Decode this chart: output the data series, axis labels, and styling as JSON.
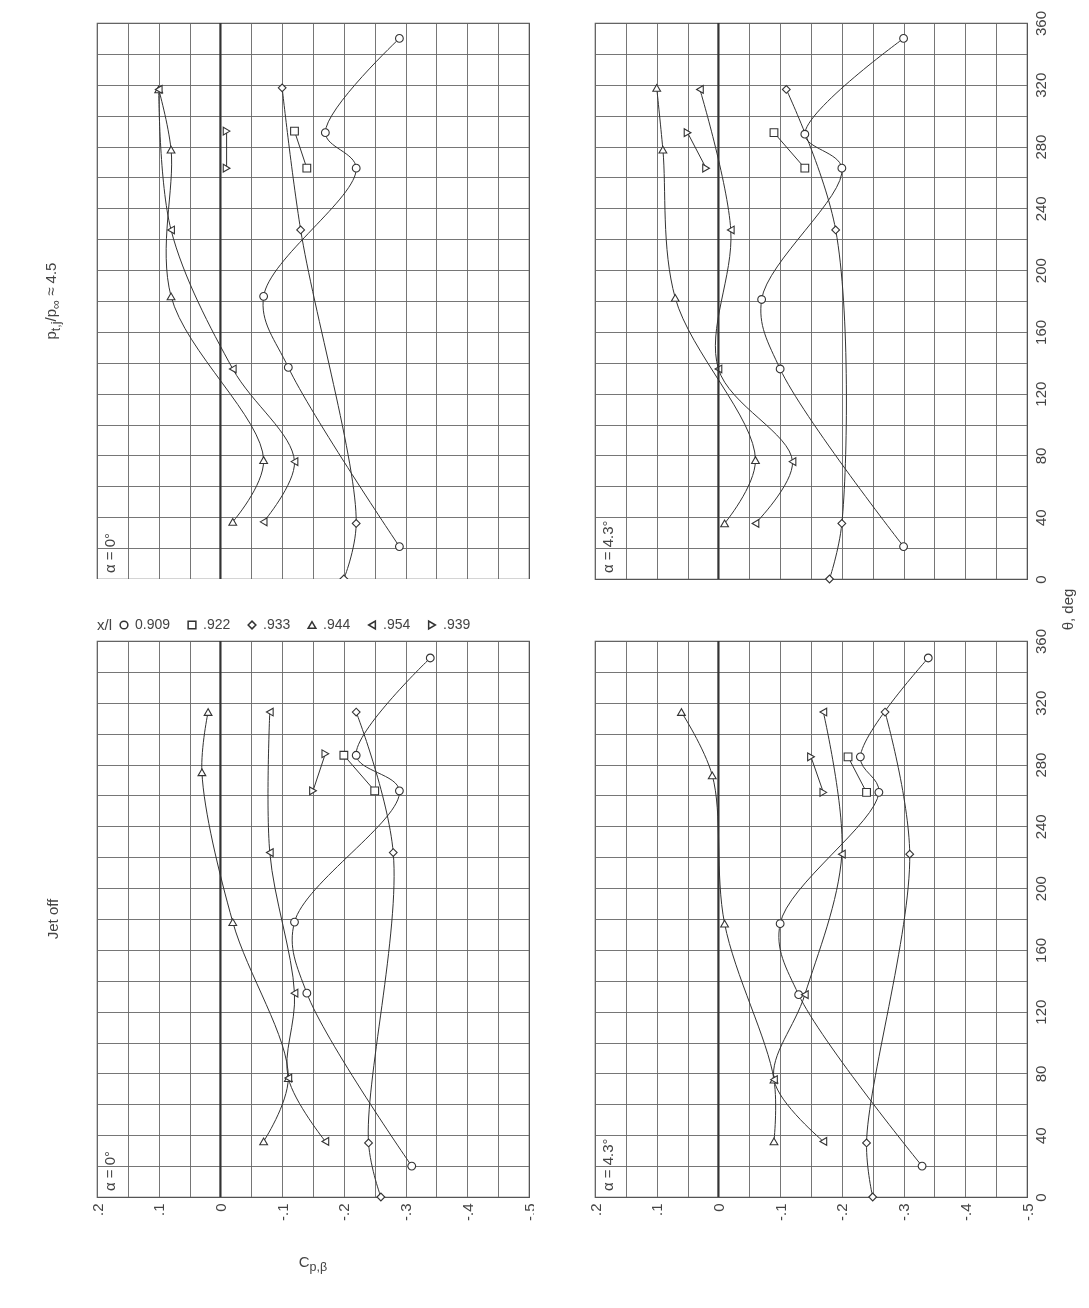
{
  "chart_data": [
    {
      "type": "line",
      "title": "p$_{t,j}$/p$_{∞}$ ≈ 4.5",
      "annotations": [
        "α = 0°"
      ],
      "xlim": [
        0.2,
        -0.5
      ],
      "ylim": [
        0,
        360
      ],
      "xticks": [
        {
          "value": 0.2,
          "label": null
        },
        {
          "value": 0.15,
          "label": null
        },
        {
          "value": 0.1,
          "label": null
        },
        {
          "value": 0.05,
          "label": null
        },
        {
          "value": 0,
          "label": null
        },
        {
          "value": -0.05,
          "label": null
        },
        {
          "value": -0.1,
          "label": null
        },
        {
          "value": -0.15,
          "label": null
        },
        {
          "value": -0.2,
          "label": null
        },
        {
          "value": -0.25,
          "label": null
        },
        {
          "value": -0.3,
          "label": null
        },
        {
          "value": -0.35,
          "label": null
        },
        {
          "value": -0.4,
          "label": null
        },
        {
          "value": -0.45,
          "label": null
        },
        {
          "value": -0.5,
          "label": null
        }
      ],
      "yticks": [
        {
          "value": 0,
          "label": null
        },
        {
          "value": 20,
          "label": null
        },
        {
          "value": 40,
          "label": null
        },
        {
          "value": 60,
          "label": null
        },
        {
          "value": 80,
          "label": null
        },
        {
          "value": 100,
          "label": null
        },
        {
          "value": 120,
          "label": null
        },
        {
          "value": 140,
          "label": null
        },
        {
          "value": 160,
          "label": null
        },
        {
          "value": 180,
          "label": null
        },
        {
          "value": 200,
          "label": null
        },
        {
          "value": 220,
          "label": null
        },
        {
          "value": 240,
          "label": null
        },
        {
          "value": 260,
          "label": null
        },
        {
          "value": 280,
          "label": null
        },
        {
          "value": 300,
          "label": null
        },
        {
          "value": 320,
          "label": null
        },
        {
          "value": 340,
          "label": null
        },
        {
          "value": 360,
          "label": null
        }
      ],
      "tick_labels": false,
      "grid": true,
      "line_style": "solid",
      "ref_lines": [
        {
          "axis": "x",
          "value": 0
        }
      ],
      "series": [
        {
          "color": "#333333",
          "marker": "circle",
          "x": [
            -0.29,
            -0.11,
            -0.07,
            -0.22,
            -0.17,
            -0.29
          ],
          "values": [
            21,
            137,
            183,
            266,
            289,
            350
          ]
        },
        {
          "color": "#333333",
          "marker": "square",
          "x": [
            -0.14,
            -0.12
          ],
          "values": [
            266,
            290
          ]
        },
        {
          "color": "#333333",
          "marker": "diamond",
          "x": [
            -0.2,
            -0.22,
            -0.13,
            -0.1
          ],
          "values": [
            0,
            36,
            226,
            318
          ]
        },
        {
          "color": "#333333",
          "marker": "triangle",
          "x": [
            -0.02,
            -0.07,
            0.08,
            0.08,
            0.1
          ],
          "values": [
            37,
            77,
            183,
            278,
            317
          ]
        },
        {
          "color": "#333333",
          "marker": "triangle-left",
          "x": [
            -0.07,
            -0.12,
            -0.02,
            0.08,
            0.1
          ],
          "values": [
            37,
            76,
            136,
            226,
            317
          ]
        },
        {
          "color": "#333333",
          "marker": "triangle-right",
          "x": [
            -0.01,
            -0.01
          ],
          "values": [
            266,
            290
          ]
        }
      ]
    },
    {
      "type": "line",
      "annotations": [
        "α = 4.3°"
      ],
      "xlim": [
        0.2,
        -0.5
      ],
      "ylim": [
        0,
        360
      ],
      "xticks": [
        {
          "value": 0.2,
          "label": null
        },
        {
          "value": 0.15,
          "label": null
        },
        {
          "value": 0.1,
          "label": null
        },
        {
          "value": 0.05,
          "label": null
        },
        {
          "value": 0,
          "label": null
        },
        {
          "value": -0.05,
          "label": null
        },
        {
          "value": -0.1,
          "label": null
        },
        {
          "value": -0.15,
          "label": null
        },
        {
          "value": -0.2,
          "label": null
        },
        {
          "value": -0.25,
          "label": null
        },
        {
          "value": -0.3,
          "label": null
        },
        {
          "value": -0.35,
          "label": null
        },
        {
          "value": -0.4,
          "label": null
        },
        {
          "value": -0.45,
          "label": null
        },
        {
          "value": -0.5,
          "label": null
        }
      ],
      "yticks": [
        0,
        {
          "value": 20,
          "label": null
        },
        40,
        {
          "value": 60,
          "label": null
        },
        80,
        {
          "value": 100,
          "label": null
        },
        120,
        {
          "value": 140,
          "label": null
        },
        160,
        {
          "value": 180,
          "label": null
        },
        200,
        {
          "value": 220,
          "label": null
        },
        240,
        {
          "value": 260,
          "label": null
        },
        280,
        {
          "value": 300,
          "label": null
        },
        320,
        {
          "value": 340,
          "label": null
        },
        360
      ],
      "tick_labels": "y",
      "grid": true,
      "line_style": "solid",
      "ref_lines": [
        {
          "axis": "x",
          "value": 0
        }
      ],
      "series": [
        {
          "color": "#333333",
          "marker": "circle",
          "x": [
            -0.3,
            -0.1,
            -0.07,
            -0.2,
            -0.14,
            -0.3
          ],
          "values": [
            21,
            136,
            181,
            266,
            288,
            350
          ]
        },
        {
          "color": "#333333",
          "marker": "square",
          "x": [
            -0.14,
            -0.09
          ],
          "values": [
            266,
            289
          ]
        },
        {
          "color": "#333333",
          "marker": "diamond",
          "x": [
            -0.18,
            -0.2,
            -0.19,
            -0.11
          ],
          "values": [
            0,
            36,
            226,
            317
          ]
        },
        {
          "color": "#333333",
          "marker": "triangle",
          "x": [
            -0.01,
            -0.06,
            0.07,
            0.09,
            0.1
          ],
          "values": [
            36,
            77,
            182,
            278,
            318
          ]
        },
        {
          "color": "#333333",
          "marker": "triangle-left",
          "x": [
            -0.06,
            -0.12,
            0,
            -0.02,
            0.03
          ],
          "values": [
            36,
            76,
            136,
            226,
            317
          ]
        },
        {
          "color": "#333333",
          "marker": "triangle-right",
          "x": [
            0.02,
            0.05
          ],
          "values": [
            266,
            289
          ]
        }
      ]
    },
    {
      "type": "line",
      "title": "Jet off",
      "annotations": [
        "α = 0°"
      ],
      "xlabel": "C$_{p,β}$",
      "legend_title": "x/l",
      "legend": "top left",
      "xlim": [
        0.2,
        -0.5
      ],
      "ylim": [
        0,
        360
      ],
      "xticks": [
        {
          "value": 0.2,
          "label": ".2"
        },
        {
          "value": 0.15,
          "label": null
        },
        {
          "value": 0.1,
          "label": ".1"
        },
        {
          "value": 0.05,
          "label": null
        },
        0,
        {
          "value": -0.05,
          "label": null
        },
        {
          "value": -0.1,
          "label": "-.1"
        },
        {
          "value": -0.15,
          "label": null
        },
        {
          "value": -0.2,
          "label": "-.2"
        },
        {
          "value": -0.25,
          "label": null
        },
        {
          "value": -0.3,
          "label": "-.3"
        },
        {
          "value": -0.35,
          "label": null
        },
        {
          "value": -0.4,
          "label": "-.4"
        },
        {
          "value": -0.45,
          "label": null
        },
        {
          "value": -0.5,
          "label": "-.5"
        }
      ],
      "yticks": [
        {
          "value": 0,
          "label": null
        },
        {
          "value": 20,
          "label": null
        },
        {
          "value": 40,
          "label": null
        },
        {
          "value": 60,
          "label": null
        },
        {
          "value": 80,
          "label": null
        },
        {
          "value": 100,
          "label": null
        },
        {
          "value": 120,
          "label": null
        },
        {
          "value": 140,
          "label": null
        },
        {
          "value": 160,
          "label": null
        },
        {
          "value": 180,
          "label": null
        },
        {
          "value": 200,
          "label": null
        },
        {
          "value": 220,
          "label": null
        },
        {
          "value": 240,
          "label": null
        },
        {
          "value": 260,
          "label": null
        },
        {
          "value": 280,
          "label": null
        },
        {
          "value": 300,
          "label": null
        },
        {
          "value": 320,
          "label": null
        },
        {
          "value": 340,
          "label": null
        },
        {
          "value": 360,
          "label": null
        }
      ],
      "tick_labels": "x",
      "grid": true,
      "line_style": "solid",
      "ref_lines": [
        {
          "axis": "x",
          "value": 0
        }
      ],
      "series": [
        {
          "name": "0.909",
          "color": "#333333",
          "marker": "circle",
          "x": [
            -0.31,
            -0.14,
            -0.12,
            -0.29,
            -0.22,
            -0.34
          ],
          "values": [
            20,
            132,
            178,
            263,
            286,
            349
          ]
        },
        {
          "name": ".922",
          "color": "#333333",
          "marker": "square",
          "x": [
            -0.25,
            -0.2
          ],
          "values": [
            263,
            286
          ]
        },
        {
          "name": ".933",
          "color": "#333333",
          "marker": "diamond",
          "x": [
            -0.26,
            -0.24,
            -0.28,
            -0.22
          ],
          "values": [
            0,
            35,
            223,
            314
          ]
        },
        {
          "name": ".944",
          "color": "#333333",
          "marker": "triangle",
          "x": [
            -0.07,
            -0.11,
            -0.02,
            0.03,
            0.02
          ],
          "values": [
            36,
            77,
            178,
            275,
            314
          ]
        },
        {
          "name": ".954",
          "color": "#333333",
          "marker": "triangle-left",
          "x": [
            -0.17,
            -0.11,
            -0.12,
            -0.08,
            -0.08
          ],
          "values": [
            36,
            77,
            132,
            223,
            314
          ]
        },
        {
          "name": ".939",
          "color": "#333333",
          "marker": "triangle-right",
          "x": [
            -0.15,
            -0.17
          ],
          "values": [
            263,
            287
          ]
        }
      ]
    },
    {
      "type": "line",
      "annotations": [
        "α = 4.3°"
      ],
      "ylabel": "θ, deg",
      "xlim": [
        0.2,
        -0.5
      ],
      "ylim": [
        0,
        360
      ],
      "xticks": [
        {
          "value": 0.2,
          "label": ".2"
        },
        {
          "value": 0.15,
          "label": null
        },
        {
          "value": 0.1,
          "label": ".1"
        },
        {
          "value": 0.05,
          "label": null
        },
        0,
        {
          "value": -0.05,
          "label": null
        },
        {
          "value": -0.1,
          "label": "-.1"
        },
        {
          "value": -0.15,
          "label": null
        },
        {
          "value": -0.2,
          "label": "-.2"
        },
        {
          "value": -0.25,
          "label": null
        },
        {
          "value": -0.3,
          "label": "-.3"
        },
        {
          "value": -0.35,
          "label": null
        },
        {
          "value": -0.4,
          "label": "-.4"
        },
        {
          "value": -0.45,
          "label": null
        },
        {
          "value": -0.5,
          "label": "-.5"
        }
      ],
      "yticks": [
        0,
        {
          "value": 20,
          "label": null
        },
        40,
        {
          "value": 60,
          "label": null
        },
        80,
        {
          "value": 100,
          "label": null
        },
        120,
        {
          "value": 140,
          "label": null
        },
        160,
        {
          "value": 180,
          "label": null
        },
        200,
        {
          "value": 220,
          "label": null
        },
        240,
        {
          "value": 260,
          "label": null
        },
        280,
        {
          "value": 300,
          "label": null
        },
        320,
        {
          "value": 340,
          "label": null
        },
        360
      ],
      "grid": true,
      "line_style": "solid",
      "ref_lines": [
        {
          "axis": "x",
          "value": 0
        }
      ],
      "series": [
        {
          "color": "#333333",
          "marker": "circle",
          "x": [
            -0.33,
            -0.13,
            -0.1,
            -0.26,
            -0.23,
            -0.34
          ],
          "values": [
            20,
            131,
            177,
            262,
            285,
            349
          ]
        },
        {
          "color": "#333333",
          "marker": "square",
          "x": [
            -0.24,
            -0.21
          ],
          "values": [
            262,
            285
          ]
        },
        {
          "color": "#333333",
          "marker": "diamond",
          "x": [
            -0.25,
            -0.24,
            -0.31,
            -0.27
          ],
          "values": [
            0,
            35,
            222,
            314
          ]
        },
        {
          "color": "#333333",
          "marker": "triangle",
          "x": [
            -0.09,
            -0.09,
            -0.01,
            0.01,
            0.06
          ],
          "values": [
            36,
            76,
            177,
            273,
            314
          ]
        },
        {
          "color": "#333333",
          "marker": "triangle-left",
          "x": [
            -0.17,
            -0.09,
            -0.14,
            -0.2,
            -0.17
          ],
          "values": [
            36,
            76,
            131,
            222,
            314
          ]
        },
        {
          "color": "#333333",
          "marker": "triangle-right",
          "x": [
            -0.17,
            -0.15
          ],
          "values": [
            262,
            285
          ]
        }
      ]
    }
  ]
}
